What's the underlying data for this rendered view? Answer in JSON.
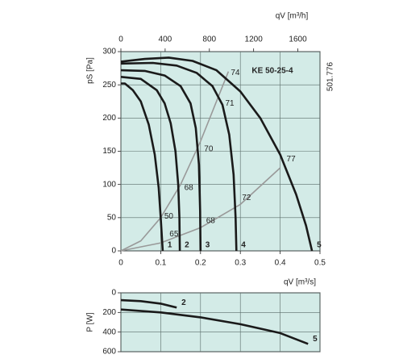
{
  "chart_data": [
    {
      "type": "line",
      "title": "KE  50-25-4",
      "code": "501.776",
      "ylabel": "pS [Pa]",
      "xlabel": "qV [m³/s]",
      "x2label": "qV [m³/h]",
      "xlim": [
        0,
        0.5
      ],
      "xticks": [
        0,
        0.1,
        0.2,
        0.3,
        0.4,
        0.5
      ],
      "x2lim": [
        0,
        1800
      ],
      "x2ticks": [
        0,
        400,
        800,
        1200,
        1600
      ],
      "ylim": [
        0,
        300
      ],
      "yticks": [
        0,
        50,
        100,
        150,
        200,
        250,
        300
      ],
      "grid": true,
      "background": "#d3ebe7",
      "series": [
        {
          "name": "1",
          "color": "#1a1a1a",
          "x": [
            0,
            0.01,
            0.03,
            0.05,
            0.07,
            0.085,
            0.095,
            0.1,
            0.105
          ],
          "values": [
            252,
            252,
            242,
            225,
            190,
            145,
            95,
            50,
            0
          ]
        },
        {
          "name": "2",
          "color": "#1a1a1a",
          "x": [
            0,
            0.05,
            0.09,
            0.11,
            0.125,
            0.137,
            0.144,
            0.147,
            0.148
          ],
          "values": [
            262,
            259,
            242,
            222,
            192,
            150,
            100,
            50,
            0
          ]
        },
        {
          "name": "3",
          "color": "#1a1a1a",
          "x": [
            0,
            0.06,
            0.11,
            0.15,
            0.175,
            0.188,
            0.196,
            0.199,
            0.2
          ],
          "values": [
            272,
            271,
            264,
            248,
            222,
            185,
            130,
            60,
            0
          ]
        },
        {
          "name": "4",
          "color": "#1a1a1a",
          "x": [
            0,
            0.08,
            0.14,
            0.19,
            0.23,
            0.255,
            0.272,
            0.283,
            0.288,
            0.29
          ],
          "values": [
            282,
            283,
            279,
            268,
            248,
            220,
            175,
            115,
            50,
            0
          ]
        },
        {
          "name": "5",
          "color": "#1a1a1a",
          "x": [
            0,
            0.06,
            0.12,
            0.18,
            0.24,
            0.3,
            0.35,
            0.4,
            0.44,
            0.465,
            0.48
          ],
          "values": [
            285,
            289,
            291,
            286,
            272,
            240,
            200,
            145,
            85,
            38,
            0
          ]
        }
      ],
      "system_curves": [
        {
          "color": "#999999",
          "x": [
            0,
            0.05,
            0.1,
            0.15,
            0.2,
            0.25,
            0.27
          ],
          "values": [
            0,
            15,
            50,
            100,
            165,
            240,
            270
          ]
        },
        {
          "color": "#999999",
          "x": [
            0,
            0.1,
            0.2,
            0.3,
            0.4
          ],
          "values": [
            0,
            12,
            35,
            70,
            125
          ]
        }
      ],
      "annotations": [
        {
          "text": "74",
          "x": 0.272,
          "y": 268
        },
        {
          "text": "71",
          "x": 0.258,
          "y": 222
        },
        {
          "text": "70",
          "x": 0.205,
          "y": 153
        },
        {
          "text": "68",
          "x": 0.155,
          "y": 95
        },
        {
          "text": "50",
          "x": 0.105,
          "y": 52
        },
        {
          "text": "65",
          "x": 0.118,
          "y": 25
        },
        {
          "text": "68",
          "x": 0.21,
          "y": 45
        },
        {
          "text": "72",
          "x": 0.3,
          "y": 80
        },
        {
          "text": "77",
          "x": 0.412,
          "y": 138
        }
      ]
    },
    {
      "type": "line",
      "ylabel": "P [W]",
      "xlim": [
        0,
        0.5
      ],
      "xgrid": [
        0,
        0.1,
        0.2,
        0.3,
        0.4,
        0.5
      ],
      "ylim": [
        0,
        600
      ],
      "yticks": [
        0,
        200,
        400,
        600
      ],
      "y_inverted": true,
      "grid": true,
      "background": "#d3ebe7",
      "series": [
        {
          "name": "2",
          "color": "#1a1a1a",
          "x": [
            0,
            0.05,
            0.1,
            0.14
          ],
          "values": [
            75,
            85,
            110,
            150
          ]
        },
        {
          "name": "5",
          "color": "#1a1a1a",
          "x": [
            0,
            0.1,
            0.2,
            0.3,
            0.4,
            0.47
          ],
          "values": [
            170,
            200,
            250,
            320,
            410,
            520
          ]
        }
      ]
    }
  ]
}
